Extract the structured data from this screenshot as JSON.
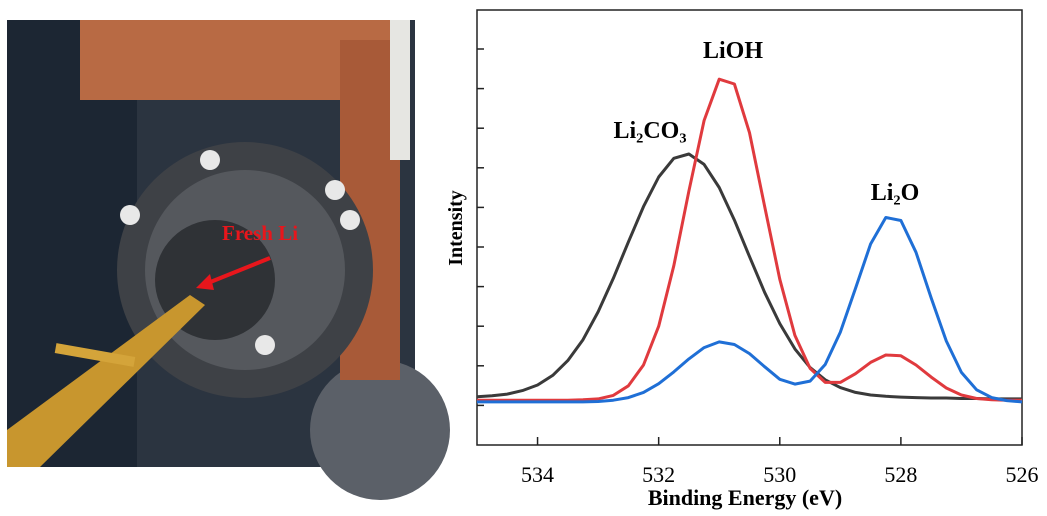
{
  "photo": {
    "annotation": "Fresh Li"
  },
  "chart_data": {
    "type": "line",
    "x_label": "Binding Energy (eV)",
    "y_label": "Intensity",
    "x": [
      535,
      534.75,
      534.5,
      534.25,
      534,
      533.75,
      533.5,
      533.25,
      533,
      532.75,
      532.5,
      532.25,
      532,
      531.75,
      531.5,
      531.25,
      531,
      530.75,
      530.5,
      530.25,
      530,
      529.75,
      529.5,
      529.25,
      529,
      528.75,
      528.5,
      528.25,
      528,
      527.75,
      527.5,
      527.25,
      527,
      526.75,
      526.5,
      526.25,
      526
    ],
    "series": [
      {
        "name": "Li₂CO₃",
        "color": "#3a3a3a",
        "values": [
          11.1,
          11.3,
          11.7,
          12.5,
          13.8,
          16.0,
          19.4,
          24.2,
          30.6,
          38.3,
          46.7,
          54.8,
          61.6,
          65.9,
          66.9,
          64.5,
          59.2,
          51.7,
          43.3,
          35.1,
          27.9,
          22.1,
          17.8,
          15.0,
          13.2,
          12.1,
          11.5,
          11.2,
          11.0,
          10.9,
          10.8,
          10.8,
          10.7,
          10.7,
          10.6,
          10.6,
          10.6
        ]
      },
      {
        "name": "LiOH",
        "color": "#e03a3e",
        "values": [
          10.3,
          10.3,
          10.3,
          10.3,
          10.3,
          10.3,
          10.3,
          10.4,
          10.6,
          11.4,
          13.6,
          18.4,
          27.3,
          41.2,
          58.4,
          74.6,
          84.1,
          83.0,
          71.8,
          54.9,
          38.1,
          25.2,
          17.6,
          14.4,
          14.4,
          16.4,
          19.0,
          20.7,
          20.5,
          18.4,
          15.6,
          13.1,
          11.5,
          10.7,
          10.4,
          10.3,
          10.3
        ]
      },
      {
        "name": "Li₂O",
        "color": "#1f6fd6",
        "values": [
          9.9,
          9.9,
          9.9,
          9.9,
          9.9,
          9.9,
          9.9,
          9.9,
          10.0,
          10.3,
          10.9,
          12.1,
          14.1,
          16.8,
          19.8,
          22.4,
          23.7,
          23.1,
          21.0,
          18.0,
          15.1,
          14.0,
          14.7,
          18.5,
          25.9,
          36.0,
          46.2,
          52.3,
          51.6,
          44.3,
          33.8,
          23.9,
          16.7,
          12.7,
          10.9,
          10.2,
          9.9
        ]
      }
    ],
    "xlim": [
      535,
      526
    ],
    "ylim": [
      0,
      100
    ],
    "xticks": [
      534,
      532,
      530,
      528,
      526
    ]
  }
}
